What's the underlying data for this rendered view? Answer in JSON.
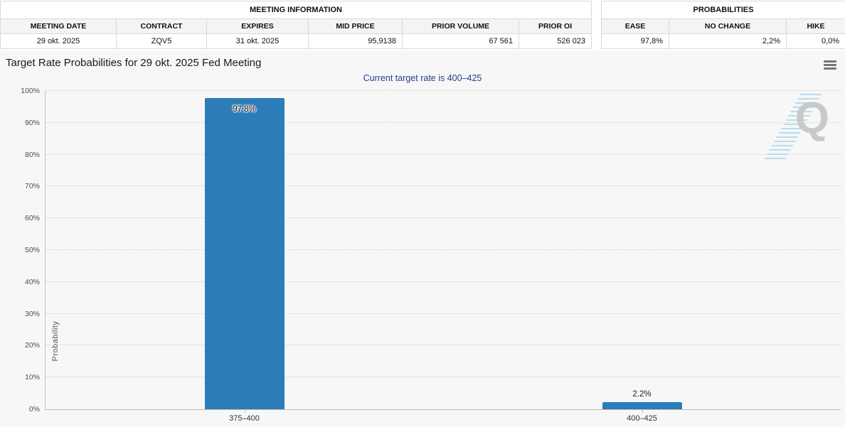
{
  "meeting_information": {
    "title": "MEETING INFORMATION",
    "columns": [
      "MEETING DATE",
      "CONTRACT",
      "EXPIRES",
      "MID PRICE",
      "PRIOR VOLUME",
      "PRIOR OI"
    ],
    "values": [
      "29 okt. 2025",
      "ZQV5",
      "31 okt. 2025",
      "95,9138",
      "67 561",
      "526 023"
    ]
  },
  "probabilities_summary": {
    "title": "PROBABILITIES",
    "columns": [
      "EASE",
      "NO CHANGE",
      "HIKE"
    ],
    "values": [
      "97,8%",
      "2,2%",
      "0,0%"
    ]
  },
  "chart": {
    "title": "Target Rate Probabilities for 29 okt. 2025 Fed Meeting",
    "subtitle": "Current target rate is 400–425",
    "ylabel": "Probability",
    "watermark_letter": "Q"
  },
  "chart_data": {
    "type": "bar",
    "title": "Target Rate Probabilities for 29 okt. 2025 Fed Meeting",
    "subtitle": "Current target rate is 400–425",
    "categories": [
      "375–400",
      "400–425"
    ],
    "values": [
      97.8,
      2.2
    ],
    "bar_labels": [
      "97.8%",
      "2.2%"
    ],
    "xlabel": "",
    "ylabel": "Probability",
    "ylim": [
      0,
      100
    ],
    "yticks": [
      "0%",
      "10%",
      "20%",
      "30%",
      "40%",
      "50%",
      "60%",
      "70%",
      "80%",
      "90%",
      "100%"
    ],
    "grid": "dotted-horizontal",
    "legend": "none",
    "bar_color": "#2c7cb8"
  },
  "colors": {
    "bar": "#2c7cb8",
    "subtitle": "#2a3b8f",
    "page_background": "#f7f7f7",
    "table_border": "#d9d9d9"
  }
}
